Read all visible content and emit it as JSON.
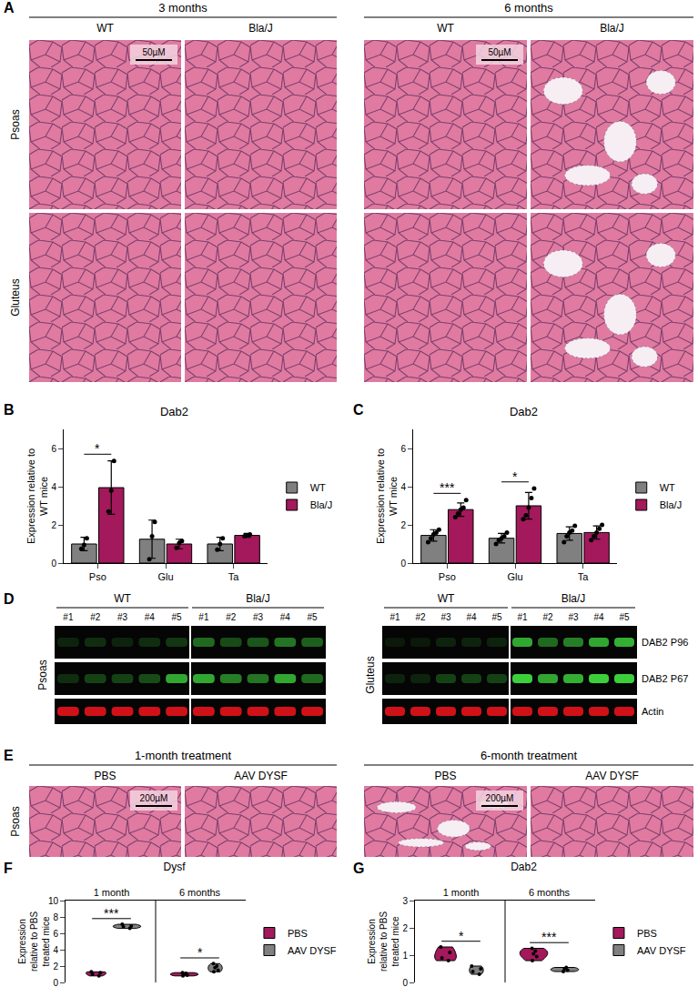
{
  "panel_a": {
    "panel": "A",
    "columns": [
      {
        "title": "3 months",
        "groups": [
          "WT",
          "Bla/J"
        ]
      },
      {
        "title": "6 months",
        "groups": [
          "WT",
          "Bla/J"
        ]
      }
    ],
    "rows": [
      "Psoas",
      "Gluteus"
    ],
    "scale_bar": "50µM"
  },
  "chart_data": [
    {
      "panel": "B",
      "type": "bar",
      "title": "Dab2",
      "y_label": "Expression relative to WT mice",
      "categories": [
        "Pso",
        "Glu",
        "Ta"
      ],
      "series": [
        {
          "name": "WT",
          "color": "#808080",
          "values": [
            1.0,
            1.25,
            1.0
          ],
          "errors": [
            0.35,
            1.0,
            0.35
          ],
          "points": [
            [
              0.75,
              0.95,
              1.3
            ],
            [
              0.2,
              1.4,
              2.15
            ],
            [
              0.7,
              1.0,
              1.3
            ]
          ]
        },
        {
          "name": "Bla/J",
          "color": "#a3195b",
          "values": [
            3.95,
            1.0,
            1.45
          ],
          "errors": [
            1.4,
            0.25,
            0.1
          ],
          "points": [
            [
              2.7,
              3.8,
              5.35
            ],
            [
              0.8,
              1.05,
              1.15
            ],
            [
              1.4,
              1.45,
              1.5
            ]
          ]
        }
      ],
      "ylim": [
        0,
        7
      ],
      "yticks": [
        0,
        2,
        4,
        6
      ],
      "legend": "right",
      "significance": [
        {
          "category": "Pso",
          "label": "*"
        }
      ]
    },
    {
      "panel": "C",
      "type": "bar",
      "title": "Dab2",
      "y_label": "Expression relative to WT mice",
      "categories": [
        "Pso",
        "Glu",
        "Ta"
      ],
      "series": [
        {
          "name": "WT",
          "color": "#808080",
          "values": [
            1.45,
            1.3,
            1.55
          ],
          "errors": [
            0.3,
            0.25,
            0.35
          ],
          "points": [
            [
              1.1,
              1.3,
              1.5,
              1.6,
              1.75
            ],
            [
              1.0,
              1.2,
              1.3,
              1.4,
              1.6
            ],
            [
              1.1,
              1.4,
              1.6,
              1.7,
              1.95
            ]
          ]
        },
        {
          "name": "Bla/J",
          "color": "#a3195b",
          "values": [
            2.8,
            3.0,
            1.6
          ],
          "errors": [
            0.35,
            0.7,
            0.35
          ],
          "points": [
            [
              2.4,
              2.6,
              2.8,
              2.9,
              3.3
            ],
            [
              2.3,
              2.5,
              2.9,
              3.4,
              3.9
            ],
            [
              1.2,
              1.4,
              1.6,
              1.8,
              2.0
            ]
          ]
        }
      ],
      "ylim": [
        0,
        7
      ],
      "yticks": [
        0,
        2,
        4,
        6
      ],
      "legend": "right",
      "significance": [
        {
          "category": "Pso",
          "label": "***"
        },
        {
          "category": "Glu",
          "label": "*"
        }
      ]
    },
    {
      "panel": "F",
      "type": "violin",
      "title": "Dysf",
      "y_label": "Expression relative to PBS treated mice",
      "categories": [
        "1 month",
        "6 months"
      ],
      "series": [
        {
          "name": "PBS",
          "color": "#a3195b",
          "values": [
            [
              0.8,
              1.0,
              1.2,
              1.3
            ],
            [
              0.8,
              0.9,
              1.0,
              1.1,
              1.2
            ]
          ]
        },
        {
          "name": "AAV DYSF",
          "color": "#808080",
          "values": [
            [
              6.6,
              6.8,
              6.9,
              7.1
            ],
            [
              1.3,
              1.5,
              1.8,
              2.0,
              2.3
            ]
          ]
        }
      ],
      "ylim": [
        0,
        10
      ],
      "yticks": [
        0,
        2,
        4,
        6,
        8,
        10
      ],
      "legend": "right",
      "significance": [
        {
          "category": "1 month",
          "label": "***"
        },
        {
          "category": "6 months",
          "label": "*"
        }
      ]
    },
    {
      "panel": "G",
      "type": "violin",
      "title": "Dab2",
      "y_label": "Expression relative to PBS treated mice",
      "categories": [
        "1 month",
        "6 months"
      ],
      "series": [
        {
          "name": "PBS",
          "color": "#a3195b",
          "values": [
            [
              0.8,
              0.9,
              1.1,
              1.3
            ],
            [
              0.8,
              0.95,
              1.05,
              1.15,
              1.25
            ]
          ]
        },
        {
          "name": "AAV DYSF",
          "color": "#808080",
          "values": [
            [
              0.3,
              0.4,
              0.5,
              0.6
            ],
            [
              0.4,
              0.45,
              0.5,
              0.55
            ]
          ]
        }
      ],
      "ylim": [
        0,
        3
      ],
      "yticks": [
        0,
        1,
        2,
        3
      ],
      "legend": "right",
      "significance": [
        {
          "category": "1 month",
          "label": "*"
        },
        {
          "category": "6 months",
          "label": "***"
        }
      ]
    }
  ],
  "panel_d": {
    "panel": "D",
    "groups": [
      "WT",
      "Bla/J"
    ],
    "lanes": [
      "#1",
      "#2",
      "#3",
      "#4",
      "#5"
    ],
    "blots": [
      {
        "tissue": "Psoas",
        "bands": [
          {
            "name": "DAB2 P96",
            "color": "#3ccf3c",
            "intensity": [
              0.15,
              0.2,
              0.15,
              0.2,
              0.25,
              0.5,
              0.35,
              0.4,
              0.55,
              0.45
            ]
          },
          {
            "name": "DAB2 P67",
            "color": "#3ccf3c",
            "intensity": [
              0.2,
              0.3,
              0.3,
              0.35,
              0.8,
              0.8,
              0.6,
              0.55,
              0.8,
              0.5
            ]
          },
          {
            "name": "Actin",
            "color": "#e8131b",
            "intensity": [
              0.9,
              0.9,
              0.9,
              0.9,
              0.9,
              0.9,
              0.9,
              0.9,
              0.9,
              0.9
            ]
          }
        ]
      },
      {
        "tissue": "Gluteus",
        "bands": [
          {
            "name": "DAB2 P96",
            "color": "#3ccf3c",
            "intensity": [
              0.1,
              0.1,
              0.15,
              0.15,
              0.15,
              0.8,
              0.5,
              0.6,
              0.8,
              0.85
            ]
          },
          {
            "name": "DAB2 P67",
            "color": "#3ccf3c",
            "intensity": [
              0.15,
              0.15,
              0.3,
              0.3,
              0.3,
              1.0,
              0.8,
              0.85,
              1.0,
              1.0
            ]
          },
          {
            "name": "Actin",
            "color": "#e8131b",
            "intensity": [
              0.9,
              0.9,
              0.9,
              0.9,
              0.9,
              0.9,
              0.9,
              0.9,
              0.9,
              0.9
            ]
          }
        ]
      }
    ]
  },
  "panel_e": {
    "panel": "E",
    "columns": [
      {
        "title": "1-month treatment",
        "groups": [
          "PBS",
          "AAV DYSF"
        ]
      },
      {
        "title": "6-month treatment",
        "groups": [
          "PBS",
          "AAV DYSF"
        ]
      }
    ],
    "rows": [
      "Psoas"
    ],
    "scale_bar": "200µM"
  }
}
